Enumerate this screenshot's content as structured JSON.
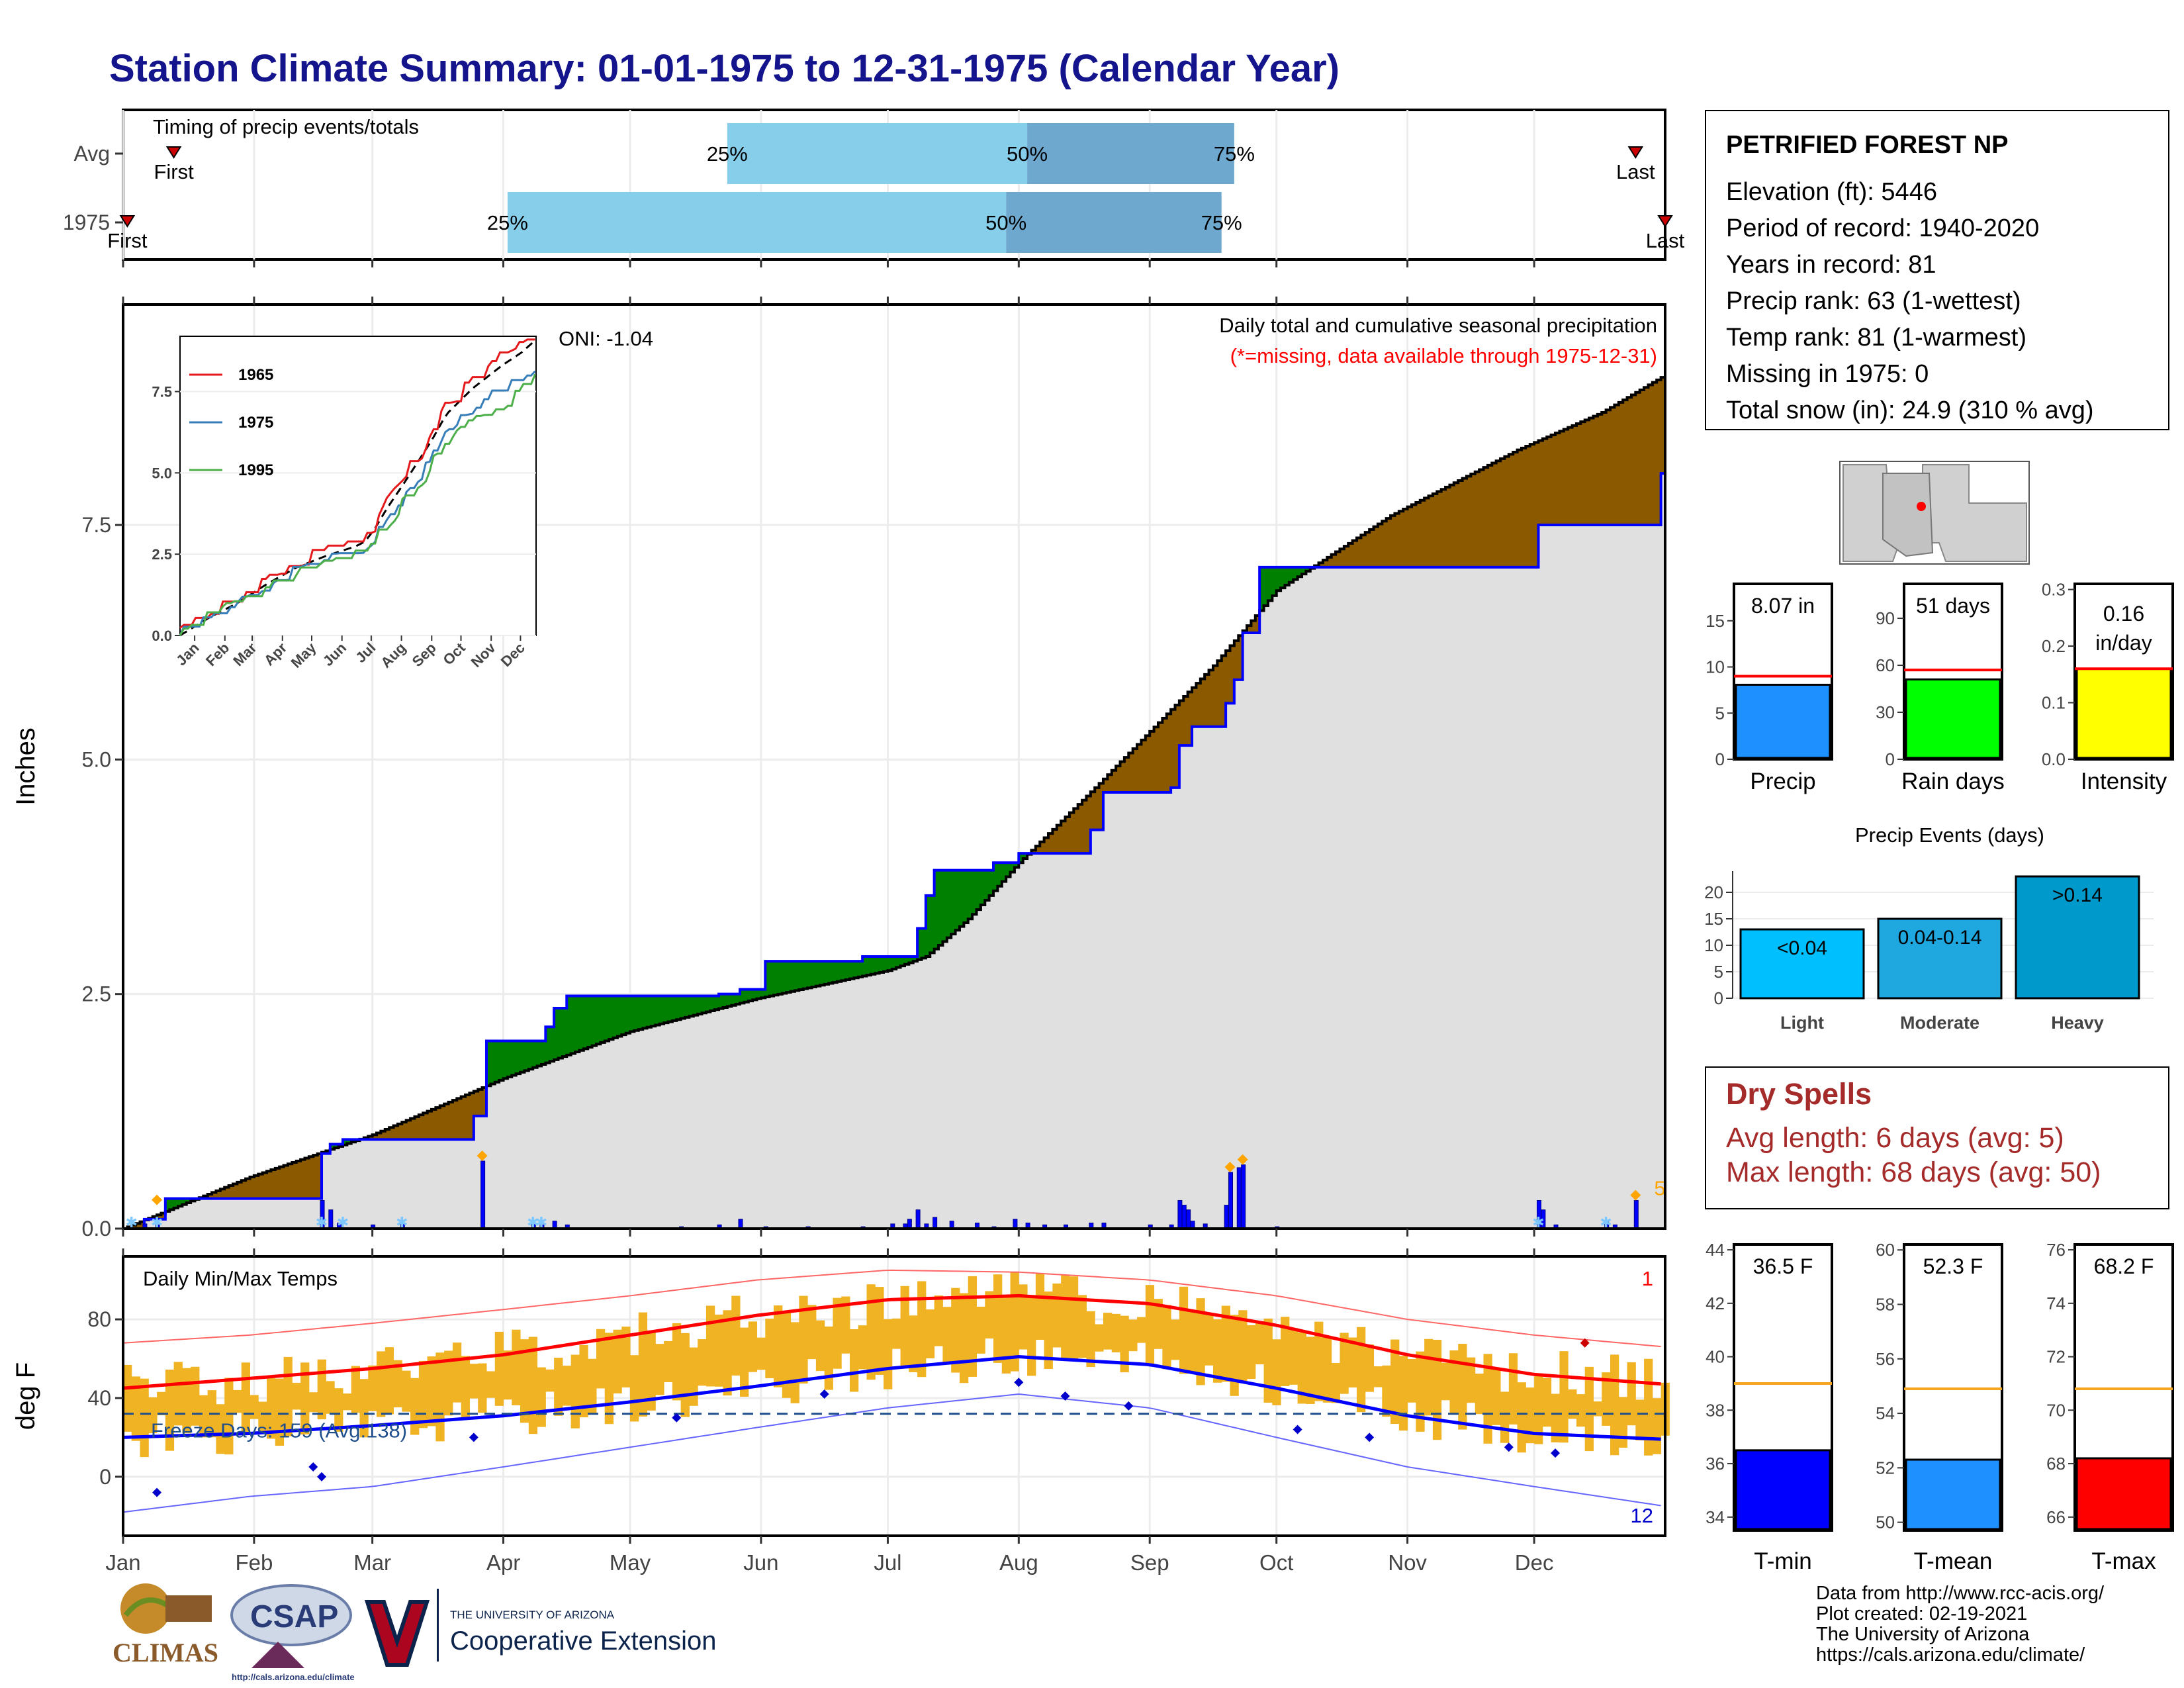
{
  "title": "Station Climate Summary: 01-01-1975 to 12-31-1975 (Calendar Year)",
  "station": {
    "name": "PETRIFIED FOREST NP",
    "lines": [
      "Elevation (ft): 5446",
      "Period of record: 1940-2020",
      "Years in record: 81",
      "Precip rank: 63 (1-wettest)",
      "Temp rank: 81 (1-warmest)",
      "Missing in 1975: 0",
      "Total snow (in): 24.9 (310 % avg)"
    ]
  },
  "dry_spells": {
    "title": "Dry Spells",
    "avg": "Avg length: 6 days (avg: 5)",
    "max": "Max length: 68 days (avg: 50)"
  },
  "credits": [
    "Data from http://www.rcc-acis.org/",
    "Plot created: 02-19-2021",
    "The University of Arizona",
    "https://cals.arizona.edu/climate/"
  ],
  "logos": {
    "climas": "CLIMAS",
    "csap": "CSAP",
    "csap_url": "http://cals.arizona.edu/climate",
    "ua_small": "THE UNIVERSITY OF ARIZONA",
    "ua_big": "Cooperative Extension"
  },
  "colors": {
    "title": "#14148c",
    "green": "#008000",
    "brown": "#8B5A00",
    "gray_fill": "#e0e0e0",
    "blue": "#0000ff",
    "light_blue": "#87ceeb",
    "steel_blue": "#6fa8cf",
    "orange": "#f0b323",
    "red": "#ff0000",
    "dry": "#a52a2a"
  },
  "chart_data": [
    {
      "type": "bar",
      "name": "timing",
      "title": "Timing of precip events/totals",
      "rows": [
        {
          "label": "Avg",
          "first_doy": 12,
          "last_doy": 358,
          "p25_doy": 143,
          "p50_doy": 214,
          "p75_doy": 263,
          "labels": {
            "first": "First",
            "last": "Last",
            "p25": "25%",
            "p50": "50%",
            "p75": "75%"
          }
        },
        {
          "label": "1975",
          "first_doy": 1,
          "last_doy": 365,
          "p25_doy": 91,
          "p50_doy": 209,
          "p75_doy": 260,
          "labels": {
            "first": "First",
            "last": "Last",
            "p25": "25%",
            "p50": "50%",
            "p75": "75%"
          }
        }
      ]
    },
    {
      "type": "area",
      "name": "cumulative_precip",
      "title": "Daily total and cumulative seasonal precipitation",
      "subtitle": "(*=missing, data available through 1975-12-31)",
      "oni": "ONI: -1.04",
      "ylabel": "Inches",
      "ylim": [
        0,
        9.85
      ],
      "yticks": [
        0,
        2.5,
        5,
        7.5
      ],
      "ytick_labels": [
        "0.0",
        "2.5",
        "5.0",
        "7.5"
      ],
      "xticks": [
        "Jan",
        "Feb",
        "Mar",
        "Apr",
        "May",
        "Jun",
        "Jul",
        "Aug",
        "Sep",
        "Oct",
        "Nov",
        "Dec"
      ],
      "avg_total": 9.0,
      "observed_steps": [
        [
          0,
          0
        ],
        [
          5,
          0.1
        ],
        [
          10,
          0.32
        ],
        [
          45,
          0.32
        ],
        [
          47,
          0.8
        ],
        [
          49,
          0.9
        ],
        [
          52,
          0.95
        ],
        [
          66,
          0.95
        ],
        [
          83,
          1.2
        ],
        [
          86,
          2.0
        ],
        [
          98,
          2.0
        ],
        [
          100,
          2.15
        ],
        [
          102,
          2.35
        ],
        [
          105,
          2.48
        ],
        [
          128,
          2.48
        ],
        [
          141,
          2.5
        ],
        [
          146,
          2.55
        ],
        [
          152,
          2.85
        ],
        [
          175,
          2.9
        ],
        [
          185,
          2.9
        ],
        [
          188,
          3.2
        ],
        [
          190,
          3.55
        ],
        [
          192,
          3.82
        ],
        [
          202,
          3.82
        ],
        [
          206,
          3.9
        ],
        [
          212,
          4.0
        ],
        [
          223,
          4.0
        ],
        [
          229,
          4.25
        ],
        [
          232,
          4.65
        ],
        [
          243,
          4.65
        ],
        [
          248,
          4.7
        ],
        [
          250,
          5.15
        ],
        [
          253,
          5.35
        ],
        [
          258,
          5.35
        ],
        [
          261,
          5.6
        ],
        [
          263,
          5.85
        ],
        [
          265,
          6.35
        ],
        [
          268,
          6.35
        ],
        [
          269,
          7.05
        ],
        [
          275,
          7.05
        ],
        [
          277,
          7.05
        ],
        [
          283,
          7.05
        ],
        [
          330,
          7.05
        ],
        [
          335,
          7.5
        ],
        [
          360,
          7.5
        ],
        [
          364,
          8.05
        ],
        [
          365,
          8.07
        ]
      ],
      "average_curve": [
        [
          0,
          0
        ],
        [
          30,
          0.55
        ],
        [
          59,
          1.0
        ],
        [
          90,
          1.6
        ],
        [
          120,
          2.1
        ],
        [
          150,
          2.45
        ],
        [
          181,
          2.75
        ],
        [
          190,
          2.9
        ],
        [
          200,
          3.3
        ],
        [
          212,
          3.9
        ],
        [
          230,
          4.7
        ],
        [
          243,
          5.3
        ],
        [
          258,
          6.0
        ],
        [
          273,
          6.8
        ],
        [
          300,
          7.6
        ],
        [
          330,
          8.3
        ],
        [
          350,
          8.7
        ],
        [
          365,
          9.1
        ]
      ],
      "daily": [
        [
          5,
          0.05
        ],
        [
          8,
          0.04
        ],
        [
          47,
          0.3
        ],
        [
          49,
          0.2
        ],
        [
          51,
          0.06
        ],
        [
          59,
          0.04
        ],
        [
          66,
          0.05
        ],
        [
          85,
          0.72
        ],
        [
          97,
          0.06
        ],
        [
          99,
          0.04
        ],
        [
          102,
          0.08
        ],
        [
          105,
          0.04
        ],
        [
          132,
          0.02
        ],
        [
          141,
          0.04
        ],
        [
          146,
          0.1
        ],
        [
          152,
          0.02
        ],
        [
          162,
          0.02
        ],
        [
          175,
          0.02
        ],
        [
          182,
          0.05
        ],
        [
          185,
          0.05
        ],
        [
          186,
          0.1
        ],
        [
          188,
          0.2
        ],
        [
          190,
          0.05
        ],
        [
          192,
          0.12
        ],
        [
          196,
          0.08
        ],
        [
          202,
          0.06
        ],
        [
          206,
          0.02
        ],
        [
          211,
          0.1
        ],
        [
          214,
          0.06
        ],
        [
          218,
          0.04
        ],
        [
          223,
          0.04
        ],
        [
          229,
          0.06
        ],
        [
          232,
          0.06
        ],
        [
          243,
          0.04
        ],
        [
          248,
          0.04
        ],
        [
          250,
          0.3
        ],
        [
          251,
          0.25
        ],
        [
          252,
          0.2
        ],
        [
          253,
          0.08
        ],
        [
          256,
          0.05
        ],
        [
          261,
          0.25
        ],
        [
          262,
          0.6
        ],
        [
          264,
          0.65
        ],
        [
          265,
          0.68
        ],
        [
          273,
          0.02
        ],
        [
          335,
          0.3
        ],
        [
          336,
          0.2
        ],
        [
          339,
          0.04
        ],
        [
          351,
          0.08
        ],
        [
          353,
          0.04
        ],
        [
          358,
          0.3
        ]
      ],
      "snow_days": [
        2,
        8,
        47,
        52,
        66,
        97,
        99,
        335,
        351
      ],
      "max_marks": [
        [
          8,
          0.25
        ],
        [
          85,
          0.72
        ],
        [
          262,
          0.6
        ],
        [
          265,
          0.68
        ],
        [
          358,
          0.3
        ]
      ],
      "max_label": "5",
      "inset": {
        "years": [
          "1965",
          "1975",
          "1995"
        ],
        "colors": [
          "#e41a1c",
          "#377eb8",
          "#4daf4a"
        ],
        "yticks": [
          "0.0",
          "2.5",
          "5.0",
          "7.5"
        ],
        "xticks": [
          "Jan",
          "Feb",
          "Mar",
          "Apr",
          "May",
          "Jun",
          "Jul",
          "Aug",
          "Sep",
          "Oct",
          "Nov",
          "Dec"
        ],
        "ylim": [
          0,
          9.2
        ]
      }
    },
    {
      "type": "line",
      "name": "temps",
      "title": "Daily Min/Max Temps",
      "ylabel": "deg F",
      "ylim": [
        -30,
        112
      ],
      "yticks": [
        0,
        40,
        80
      ],
      "ytick_labels": [
        "0",
        "40",
        "80"
      ],
      "freeze_label": "Freeze Days: 159 (Avg:138)",
      "freeze_line": 32,
      "record_high_count": "1",
      "record_low_count": "12",
      "avg_max_curve": [
        [
          0,
          45
        ],
        [
          30,
          50
        ],
        [
          59,
          55
        ],
        [
          90,
          62
        ],
        [
          120,
          72
        ],
        [
          150,
          82
        ],
        [
          181,
          90
        ],
        [
          212,
          92
        ],
        [
          243,
          88
        ],
        [
          273,
          77
        ],
        [
          304,
          62
        ],
        [
          334,
          52
        ],
        [
          365,
          47
        ]
      ],
      "avg_min_curve": [
        [
          0,
          20
        ],
        [
          30,
          22
        ],
        [
          59,
          26
        ],
        [
          90,
          31
        ],
        [
          120,
          38
        ],
        [
          150,
          46
        ],
        [
          181,
          55
        ],
        [
          212,
          61
        ],
        [
          243,
          57
        ],
        [
          273,
          45
        ],
        [
          304,
          31
        ],
        [
          334,
          22
        ],
        [
          365,
          19
        ]
      ],
      "record_max_curve": [
        [
          0,
          68
        ],
        [
          30,
          72
        ],
        [
          59,
          78
        ],
        [
          90,
          85
        ],
        [
          120,
          92
        ],
        [
          150,
          100
        ],
        [
          181,
          105
        ],
        [
          212,
          104
        ],
        [
          243,
          100
        ],
        [
          273,
          92
        ],
        [
          304,
          80
        ],
        [
          334,
          72
        ],
        [
          365,
          66
        ]
      ],
      "record_min_curve": [
        [
          0,
          -18
        ],
        [
          30,
          -10
        ],
        [
          59,
          -5
        ],
        [
          90,
          5
        ],
        [
          120,
          15
        ],
        [
          150,
          25
        ],
        [
          181,
          35
        ],
        [
          212,
          42
        ],
        [
          243,
          35
        ],
        [
          273,
          20
        ],
        [
          304,
          5
        ],
        [
          334,
          -5
        ],
        [
          365,
          -15
        ]
      ],
      "low_records": [
        [
          8,
          -8
        ],
        [
          45,
          5
        ],
        [
          47,
          0
        ],
        [
          83,
          20
        ],
        [
          131,
          30
        ],
        [
          166,
          42
        ],
        [
          212,
          48
        ],
        [
          223,
          41
        ],
        [
          238,
          36
        ],
        [
          278,
          24
        ],
        [
          295,
          20
        ],
        [
          328,
          15
        ],
        [
          339,
          12
        ]
      ],
      "high_record": [
        [
          346,
          68
        ]
      ]
    },
    {
      "type": "bar",
      "name": "precip_gauges",
      "panels": [
        {
          "label": "Precip",
          "value_label": "8.07 in",
          "value": 8.07,
          "avg": 9.0,
          "ylim": [
            0,
            19
          ],
          "yticks": [
            "0",
            "5",
            "10",
            "15"
          ],
          "color": "#1e90ff"
        },
        {
          "label": "Rain days",
          "value_label": "51 days",
          "value": 51,
          "avg": 57,
          "ylim": [
            0,
            112
          ],
          "yticks": [
            "0",
            "30",
            "60",
            "90"
          ],
          "color": "#00ff00"
        },
        {
          "label": "Intensity",
          "value_label": "0.16 in/day",
          "value": 0.16,
          "avg": 0.16,
          "ylim": [
            0,
            0.31
          ],
          "yticks": [
            "0.0",
            "0.1",
            "0.2",
            "0.3"
          ],
          "color": "#ffff00"
        }
      ]
    },
    {
      "type": "bar",
      "name": "precip_events",
      "title": "Precip Events (days)",
      "categories": [
        "Light",
        "Moderate",
        "Heavy"
      ],
      "values": [
        13,
        15,
        23
      ],
      "value_labels": [
        "<0.04",
        "0.04-0.14",
        ">0.14"
      ],
      "colors": [
        "#00bfff",
        "#1fa8df",
        "#0099cc"
      ],
      "ylim": [
        0,
        24
      ],
      "yticks": [
        "0",
        "5",
        "10",
        "15",
        "20"
      ]
    },
    {
      "type": "bar",
      "name": "temp_gauges",
      "panels": [
        {
          "label": "T-min",
          "value_label": "36.5 F",
          "value": 36.5,
          "avg": 39.0,
          "ylim": [
            33.5,
            44.2
          ],
          "yticks": [
            "34",
            "36",
            "38",
            "40",
            "42",
            "44"
          ],
          "color": "#0000ff"
        },
        {
          "label": "T-mean",
          "value_label": "52.3 F",
          "value": 52.3,
          "avg": 54.9,
          "ylim": [
            49.7,
            60.2
          ],
          "yticks": [
            "50",
            "52",
            "54",
            "56",
            "58",
            "60"
          ],
          "color": "#1e90ff"
        },
        {
          "label": "T-max",
          "value_label": "68.2 F",
          "value": 68.2,
          "avg": 70.8,
          "ylim": [
            65.5,
            76.2
          ],
          "yticks": [
            "66",
            "68",
            "70",
            "72",
            "74",
            "76"
          ],
          "color": "#ff0000"
        }
      ]
    },
    {
      "type": "line",
      "name": "locator_map",
      "marker": "station location"
    }
  ]
}
